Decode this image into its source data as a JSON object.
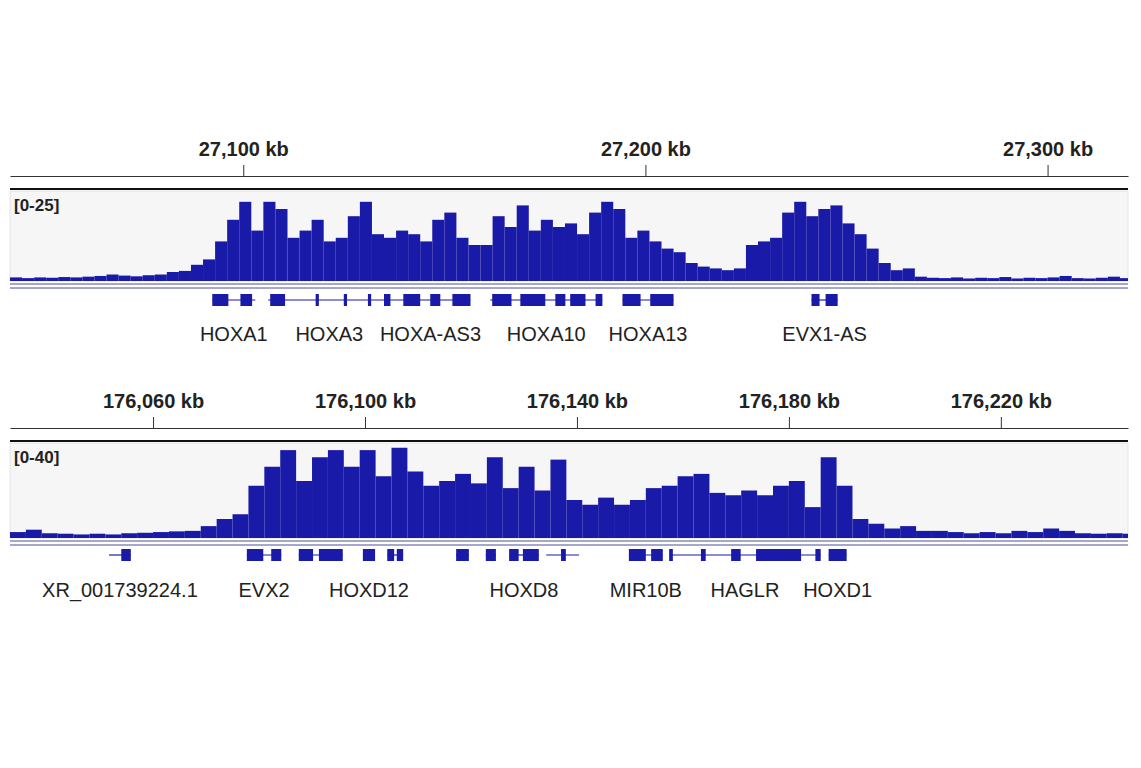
{
  "chart_data": [
    {
      "type": "bar",
      "color": "#1a1aa8",
      "range_label": "[0-25]",
      "tick_labels": "x",
      "xlim": [
        27042,
        27320
      ],
      "ylim": [
        0,
        25
      ],
      "xticks": [
        {
          "value": 27100,
          "label": "27,100 kb"
        },
        {
          "value": 27200,
          "label": "27,200 kb"
        },
        {
          "value": 27300,
          "label": "27,300 kb"
        }
      ],
      "x": [
        27042,
        27045,
        27048,
        27051,
        27054,
        27057,
        27060,
        27063,
        27066,
        27069,
        27072,
        27075,
        27078,
        27081,
        27084,
        27087,
        27090,
        27093,
        27096,
        27099,
        27102,
        27105,
        27108,
        27111,
        27114,
        27117,
        27120,
        27123,
        27126,
        27129,
        27132,
        27135,
        27138,
        27141,
        27144,
        27147,
        27150,
        27153,
        27156,
        27159,
        27162,
        27165,
        27168,
        27171,
        27174,
        27177,
        27180,
        27183,
        27186,
        27189,
        27192,
        27195,
        27198,
        27201,
        27204,
        27207,
        27210,
        27213,
        27216,
        27219,
        27222,
        27225,
        27228,
        27231,
        27234,
        27237,
        27240,
        27243,
        27246,
        27249,
        27252,
        27255,
        27258,
        27261,
        27264,
        27267,
        27270,
        27273,
        27276,
        27279,
        27282,
        27285,
        27288,
        27291,
        27294,
        27297,
        27300,
        27303,
        27306,
        27309,
        27312,
        27315,
        27318
      ],
      "values": [
        1,
        0.8,
        1,
        0.9,
        1.1,
        1,
        1.2,
        1.4,
        1.8,
        1.5,
        1.3,
        1.6,
        1.8,
        2.5,
        2.8,
        4.5,
        6,
        11,
        17,
        22,
        14,
        22,
        20,
        12,
        14,
        17,
        11,
        12,
        18,
        22,
        13,
        12,
        14,
        13,
        11,
        17,
        19,
        12,
        10,
        10,
        18,
        15,
        21,
        14,
        17,
        15,
        16,
        13,
        19,
        22,
        20,
        12,
        14,
        11,
        9,
        8,
        5,
        4,
        3.5,
        3,
        3.5,
        10,
        11,
        12,
        19,
        22,
        18,
        20,
        21,
        16,
        13,
        9,
        5,
        3,
        3.5,
        1.2,
        0.9,
        0.8,
        1,
        0.7,
        0.9,
        0.8,
        1.1,
        0.7,
        0.9,
        0.8,
        1,
        1.4,
        0.8,
        0.7,
        0.9,
        1.2,
        0.8
      ],
      "genes": [
        {
          "start": 27092.3,
          "end": 27103.0,
          "exons": [
            [
              27092.3,
              27096.3
            ],
            [
              27099.3,
              27102.2
            ]
          ],
          "label": "HOXA1"
        },
        {
          "start": 27106.2,
          "end": 27136.6,
          "exons": [
            [
              27106.7,
              27110.4
            ],
            [
              27118.0,
              27118.8
            ],
            [
              27125.0,
              27125.8
            ],
            [
              27131.0,
              27131.8
            ],
            [
              27135.0,
              27136.6
            ]
          ],
          "label": "HOXA3"
        },
        {
          "start": 27136.6,
          "end": 27156.5,
          "exons": [
            [
              27139.8,
              27144.0
            ],
            [
              27146.5,
              27149.0
            ],
            [
              27152.0,
              27156.5
            ]
          ],
          "label": "HOXA-AS3"
        },
        {
          "start": 27161.4,
          "end": 27189.3,
          "exons": [
            [
              27161.9,
              27166.7
            ],
            [
              27168.9,
              27175.1
            ],
            [
              27177.6,
              27180.1
            ],
            [
              27181.3,
              27185.1
            ],
            [
              27187.6,
              27189.3
            ]
          ],
          "label": "HOXA10"
        },
        {
          "start": 27194.3,
          "end": 27207.0,
          "exons": [
            [
              27194.3,
              27198.8
            ],
            [
              27201.2,
              27207.0
            ]
          ],
          "label": "HOXA13"
        },
        {
          "start": 27241.3,
          "end": 27247.8,
          "exons": [
            [
              27241.3,
              27243.3
            ],
            [
              27244.8,
              27247.8
            ]
          ],
          "label": "EVX1-AS"
        }
      ]
    },
    {
      "type": "bar",
      "color": "#1a1aa8",
      "range_label": "[0-40]",
      "tick_labels": "x",
      "xlim": [
        176033,
        176244
      ],
      "ylim": [
        0,
        40
      ],
      "xticks": [
        {
          "value": 176060,
          "label": "176,060 kb"
        },
        {
          "value": 176100,
          "label": "176,100 kb"
        },
        {
          "value": 176140,
          "label": "176,140 kb"
        },
        {
          "value": 176180,
          "label": "176,180 kb"
        },
        {
          "value": 176220,
          "label": "176,220 kb"
        }
      ],
      "x": [
        176033,
        176036,
        176039,
        176042,
        176045,
        176048,
        176051,
        176054,
        176057,
        176060,
        176063,
        176066,
        176069,
        176072,
        176075,
        176078,
        176081,
        176084,
        176087,
        176090,
        176093,
        176096,
        176099,
        176102,
        176105,
        176108,
        176111,
        176114,
        176117,
        176120,
        176123,
        176126,
        176129,
        176132,
        176135,
        176138,
        176141,
        176144,
        176147,
        176150,
        176153,
        176156,
        176159,
        176162,
        176165,
        176168,
        176171,
        176174,
        176177,
        176180,
        176183,
        176186,
        176189,
        176192,
        176195,
        176198,
        176201,
        176204,
        176207,
        176210,
        176213,
        176216,
        176219,
        176222,
        176225,
        176228,
        176231,
        176234,
        176237,
        176240,
        176243
      ],
      "values": [
        2.5,
        3.5,
        2,
        1.8,
        1.5,
        1.8,
        1.5,
        2,
        2.2,
        2.5,
        2.8,
        3,
        5,
        8,
        10,
        22,
        30,
        37,
        24,
        34,
        37,
        30,
        37,
        26,
        38,
        28,
        22,
        24,
        27,
        23,
        34,
        21,
        30,
        20,
        33,
        16,
        14,
        17,
        14,
        16,
        21,
        22,
        26,
        27,
        19,
        18,
        20,
        18,
        22,
        24,
        13,
        34,
        22,
        8,
        6,
        4,
        5,
        3,
        3,
        2.5,
        2,
        2.5,
        2,
        3,
        2.5,
        4,
        3,
        2,
        1.8,
        2,
        1.8
      ],
      "genes": [
        {
          "start": 176051.7,
          "end": 176055.8,
          "exons": [
            [
              176054.0,
              176055.8
            ]
          ],
          "label": "XR_001739224.1"
        },
        {
          "start": 176077.7,
          "end": 176084.2,
          "exons": [
            [
              176077.7,
              176080.8
            ],
            [
              176082.3,
              176084.2
            ]
          ],
          "label": "EVX2"
        },
        {
          "start": 176087.5,
          "end": 176095.8,
          "exons": [
            [
              176087.5,
              176090.2
            ],
            [
              176091.3,
              176095.8
            ]
          ],
          "label": null
        },
        {
          "start": 176099.6,
          "end": 176101.9,
          "exons": [
            [
              176099.6,
              176101.9
            ]
          ],
          "label": "HOXD12"
        },
        {
          "start": 176104.2,
          "end": 176107.2,
          "exons": [
            [
              176104.2,
              176105.5
            ],
            [
              176106.0,
              176107.2
            ]
          ],
          "label": null
        },
        {
          "start": 176117.2,
          "end": 176119.6,
          "exons": [
            [
              176117.2,
              176119.6
            ]
          ],
          "label": null
        },
        {
          "start": 176122.8,
          "end": 176124.7,
          "exons": [
            [
              176122.8,
              176124.7
            ]
          ],
          "label": null
        },
        {
          "start": 176127.2,
          "end": 176132.8,
          "exons": [
            [
              176127.2,
              176129.0
            ],
            [
              176129.8,
              176132.8
            ]
          ],
          "label": "HOXD8"
        },
        {
          "start": 176134.2,
          "end": 176140.4,
          "exons": [
            [
              176137.0,
              176137.9
            ]
          ],
          "label": null
        },
        {
          "start": 176149.8,
          "end": 176156.2,
          "exons": [
            [
              176149.8,
              176153.0
            ],
            [
              176154.0,
              176156.2
            ]
          ],
          "label": "MIR10B"
        },
        {
          "start": 176157.4,
          "end": 176186.0,
          "exons": [
            [
              176157.4,
              176158.1
            ],
            [
              176163.4,
              176164.3
            ],
            [
              176169.1,
              176170.9
            ],
            [
              176173.8,
              176182.3
            ],
            [
              176185.0,
              176186.0
            ]
          ],
          "label": "HAGLR"
        },
        {
          "start": 176187.5,
          "end": 176190.9,
          "exons": [
            [
              176187.5,
              176190.9
            ]
          ],
          "label": "HOXD1"
        }
      ]
    }
  ]
}
